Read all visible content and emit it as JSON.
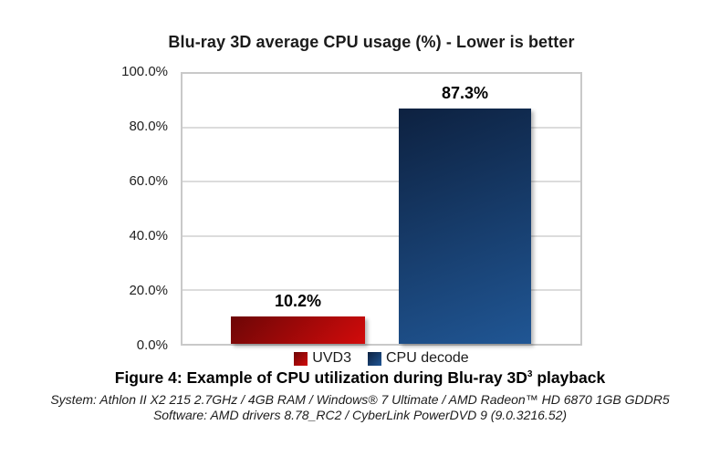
{
  "chart_data": {
    "type": "bar",
    "title": "Blu-ray 3D average CPU usage (%) - Lower is better",
    "categories": [
      "UVD3",
      "CPU decode"
    ],
    "values": [
      10.2,
      87.3
    ],
    "value_labels": [
      "10.2%",
      "87.3%"
    ],
    "series": [
      {
        "name": "UVD3",
        "value": 10.2,
        "color_dark": "#6d0606",
        "color_bright": "#d20b0b",
        "gradient_angle": "135deg"
      },
      {
        "name": "CPU decode",
        "value": 87.3,
        "color_dark": "#0d2140",
        "color_bright": "#205694",
        "gradient_angle": "160deg"
      }
    ],
    "ylim": [
      0,
      100
    ],
    "yticklabels": [
      "100.0%",
      "80.0%",
      "60.0%",
      "40.0%",
      "20.0%",
      "0.0%"
    ],
    "ylabel": "",
    "xlabel": "",
    "grid": "horizontal gridlines every 20%",
    "legend_position": "bottom"
  },
  "caption": {
    "before_sup": "Figure 4: Example of CPU utilization during Blu-ray 3D",
    "sup": "3",
    "after_sup": " playback"
  },
  "footnotes": {
    "system": "System: Athlon II X2 215 2.7GHz / 4GB RAM / Windows® 7 Ultimate / AMD Radeon™ HD 6870 1GB GDDR5",
    "software": "Software: AMD drivers 8.78_RC2 / CyberLink PowerDVD 9 (9.0.3216.52)"
  },
  "colors": {
    "background": "#ffffff",
    "plot_border": "#c9c9c9",
    "gridline": "#dcdcdc",
    "title_text": "#1b1b1b",
    "axis_text": "#222222",
    "bar_red_dark": "#6d0606",
    "bar_red_bright": "#d20b0b",
    "bar_blue_dark": "#0d2140",
    "bar_blue_bright": "#205694"
  }
}
